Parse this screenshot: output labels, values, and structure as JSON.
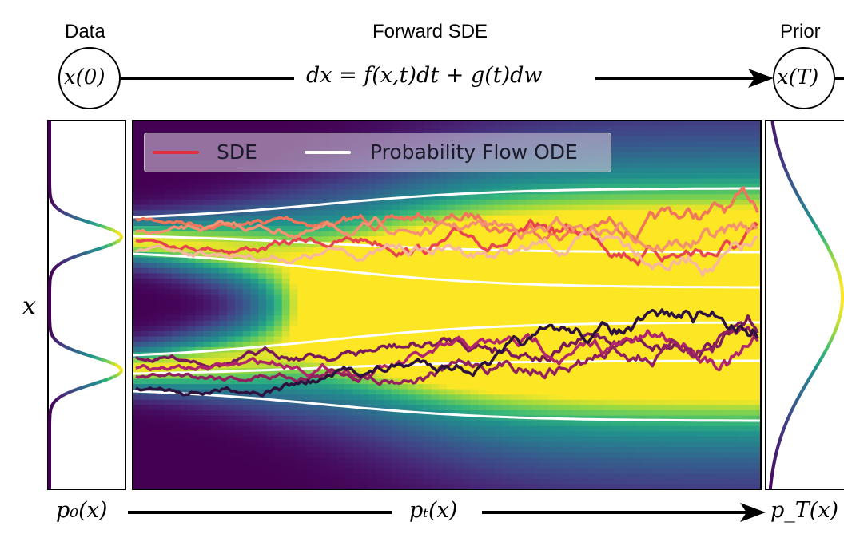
{
  "headers": {
    "data": "Data",
    "forward_sde": "Forward SDE",
    "prior": "Prior"
  },
  "nodes": {
    "start": "x(0)",
    "end": "x(T)"
  },
  "equation": "dx = f(x,t)dt + g(t)dw",
  "y_axis_label": "x",
  "bottom": {
    "p0": "p₀(x)",
    "pt": "pₜ(x)",
    "pT": "p_T(x)"
  },
  "legend": {
    "sde": "SDE",
    "ode": "Probability Flow ODE"
  },
  "colors": {
    "sde_legend": "#e0303e",
    "ode_legend": "#ffffff",
    "viridis_dark": "#440154",
    "viridis_mid": "#21918c",
    "viridis_bright": "#fde725"
  },
  "sde_path_colors": [
    "#f0755a",
    "#e8434f",
    "#f7b89e",
    "#f39170",
    "#7a1a5a",
    "#b0256b",
    "#91205e",
    "#2d1240"
  ]
}
